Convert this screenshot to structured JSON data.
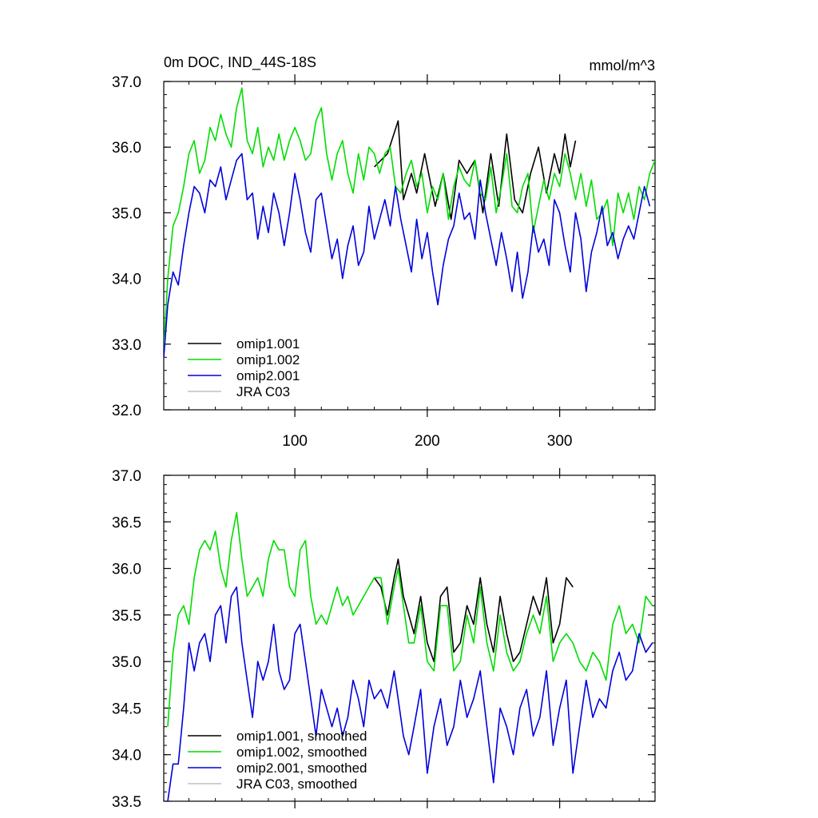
{
  "chart_data": [
    {
      "type": "line",
      "title": "0m DOC, IND_44S-18S",
      "units": "mmol/m^3",
      "xlim": [
        1,
        372
      ],
      "ylim": [
        32.0,
        37.0
      ],
      "xticks": [
        100,
        200,
        300
      ],
      "xtick_labels": [
        "100",
        "200",
        "300"
      ],
      "yticks": [
        32.0,
        33.0,
        34.0,
        35.0,
        36.0,
        37.0
      ],
      "ytick_labels": [
        "32.0",
        "33.0",
        "34.0",
        "35.0",
        "36.0",
        "37.0"
      ],
      "legend": [
        "omip1.001",
        "omip1.002",
        "omip2.001",
        "JRA C03"
      ],
      "legend_position": "bottom-left",
      "series": [
        {
          "name": "omip1.001",
          "color": "#000000",
          "x": [
            160,
            170,
            178,
            182,
            188,
            192,
            198,
            206,
            212,
            218,
            224,
            230,
            236,
            242,
            248,
            254,
            260,
            266,
            272,
            278,
            284,
            290,
            296,
            300,
            304,
            308,
            312
          ],
          "values": [
            35.7,
            35.9,
            36.4,
            35.2,
            35.6,
            35.3,
            35.9,
            35.1,
            35.6,
            34.9,
            35.8,
            35.6,
            35.8,
            35.0,
            35.9,
            35.1,
            36.2,
            35.2,
            35.0,
            35.6,
            36.0,
            35.3,
            35.9,
            35.6,
            36.2,
            35.7,
            36.1
          ]
        },
        {
          "name": "omip1.002",
          "color": "#00dd00",
          "x": [
            1,
            4,
            8,
            12,
            16,
            20,
            24,
            28,
            32,
            36,
            40,
            44,
            48,
            52,
            56,
            60,
            64,
            68,
            72,
            76,
            80,
            84,
            88,
            92,
            96,
            100,
            104,
            108,
            112,
            116,
            120,
            124,
            128,
            132,
            136,
            140,
            144,
            148,
            152,
            156,
            160,
            164,
            168,
            172,
            176,
            180,
            184,
            188,
            192,
            196,
            200,
            204,
            208,
            212,
            216,
            220,
            224,
            228,
            232,
            236,
            240,
            244,
            248,
            252,
            256,
            260,
            264,
            268,
            272,
            276,
            280,
            284,
            288,
            292,
            296,
            300,
            304,
            308,
            312,
            316,
            320,
            324,
            328,
            332,
            336,
            340,
            344,
            348,
            352,
            356,
            360,
            364,
            368,
            372
          ],
          "values": [
            32.9,
            34.0,
            34.8,
            35.0,
            35.4,
            35.9,
            36.1,
            35.6,
            35.8,
            36.3,
            36.1,
            36.5,
            36.2,
            36.0,
            36.6,
            36.9,
            36.1,
            35.9,
            36.3,
            35.7,
            36.0,
            35.8,
            36.2,
            35.8,
            36.1,
            36.3,
            36.1,
            35.8,
            35.9,
            36.4,
            36.6,
            35.9,
            35.5,
            35.9,
            36.1,
            35.6,
            35.3,
            35.9,
            35.5,
            36.0,
            35.9,
            35.6,
            35.9,
            36.0,
            35.4,
            35.3,
            35.6,
            35.8,
            35.4,
            35.6,
            35.0,
            35.4,
            35.2,
            35.6,
            34.9,
            35.4,
            35.7,
            35.5,
            35.4,
            35.8,
            35.3,
            35.2,
            35.7,
            35.0,
            35.4,
            35.9,
            35.1,
            35.0,
            35.4,
            35.6,
            34.7,
            35.1,
            35.5,
            35.2,
            35.6,
            35.4,
            35.9,
            35.6,
            35.2,
            35.6,
            35.1,
            35.5,
            34.9,
            35.0,
            35.2,
            34.5,
            35.3,
            35.0,
            35.3,
            34.9,
            35.4,
            35.2,
            35.6,
            35.8
          ]
        },
        {
          "name": "omip2.001",
          "color": "#0000dd",
          "x": [
            1,
            4,
            8,
            12,
            16,
            20,
            24,
            28,
            32,
            36,
            40,
            44,
            48,
            52,
            56,
            60,
            64,
            68,
            72,
            76,
            80,
            84,
            88,
            92,
            96,
            100,
            104,
            108,
            112,
            116,
            120,
            124,
            128,
            132,
            136,
            140,
            144,
            148,
            152,
            156,
            160,
            164,
            168,
            172,
            176,
            180,
            184,
            188,
            192,
            196,
            200,
            204,
            208,
            212,
            216,
            220,
            224,
            228,
            232,
            236,
            240,
            244,
            248,
            252,
            256,
            260,
            264,
            268,
            272,
            276,
            280,
            284,
            288,
            292,
            296,
            300,
            304,
            308,
            312,
            316,
            320,
            324,
            328,
            332,
            336,
            340,
            344,
            348,
            352,
            356,
            360,
            364,
            368
          ],
          "values": [
            32.8,
            33.6,
            34.1,
            33.9,
            34.5,
            35.0,
            35.4,
            35.3,
            35.0,
            35.5,
            35.4,
            35.7,
            35.2,
            35.5,
            35.8,
            35.9,
            35.2,
            35.3,
            34.6,
            35.1,
            34.7,
            35.3,
            35.0,
            34.5,
            35.0,
            35.6,
            35.2,
            34.7,
            34.4,
            35.2,
            35.3,
            34.8,
            34.3,
            34.6,
            34.0,
            34.5,
            34.8,
            34.2,
            34.4,
            35.1,
            34.6,
            34.9,
            35.2,
            34.8,
            35.4,
            34.9,
            34.5,
            34.1,
            34.9,
            34.3,
            34.7,
            34.1,
            33.6,
            34.2,
            34.6,
            34.8,
            35.3,
            34.9,
            35.0,
            34.6,
            35.5,
            35.0,
            34.6,
            34.2,
            34.7,
            34.3,
            33.8,
            34.4,
            33.7,
            34.1,
            34.8,
            34.4,
            34.6,
            34.2,
            35.2,
            35.0,
            34.5,
            34.1,
            35.0,
            34.6,
            33.8,
            34.4,
            34.7,
            35.1,
            34.5,
            34.7,
            34.3,
            34.6,
            34.8,
            34.6,
            35.0,
            35.4,
            35.1
          ]
        },
        {
          "name": "JRA C03",
          "color": "#c0c0c0",
          "x": [],
          "values": []
        }
      ]
    },
    {
      "type": "line",
      "title": "",
      "xlim": [
        1,
        372
      ],
      "ylim": [
        33.5,
        37.0
      ],
      "xticks": [
        100,
        200,
        300
      ],
      "yticks": [
        33.5,
        34.0,
        34.5,
        35.0,
        35.5,
        36.0,
        36.5,
        37.0
      ],
      "ytick_labels": [
        "33.5",
        "34.0",
        "34.5",
        "35.0",
        "35.5",
        "36.0",
        "36.5",
        "37.0"
      ],
      "legend": [
        "omip1.001, smoothed",
        "omip1.002, smoothed",
        "omip2.001, smoothed",
        "JRA C03, smoothed"
      ],
      "legend_position": "bottom-left",
      "series": [
        {
          "name": "omip1.001, smoothed",
          "color": "#000000",
          "x": [
            160,
            165,
            170,
            175,
            178,
            182,
            186,
            190,
            195,
            200,
            205,
            210,
            215,
            220,
            225,
            230,
            235,
            240,
            245,
            250,
            255,
            260,
            265,
            270,
            275,
            280,
            285,
            290,
            295,
            300,
            305,
            310
          ],
          "values": [
            35.9,
            35.8,
            35.5,
            35.9,
            36.1,
            35.7,
            35.5,
            35.3,
            35.7,
            35.2,
            35.0,
            35.7,
            35.8,
            35.1,
            35.2,
            35.6,
            35.4,
            35.9,
            35.4,
            35.1,
            35.7,
            35.3,
            35.0,
            35.1,
            35.4,
            35.7,
            35.5,
            35.9,
            35.2,
            35.4,
            35.9,
            35.8
          ]
        },
        {
          "name": "omip1.002, smoothed",
          "color": "#00dd00",
          "x": [
            4,
            8,
            12,
            16,
            20,
            24,
            28,
            32,
            36,
            40,
            44,
            48,
            52,
            56,
            60,
            64,
            68,
            72,
            76,
            80,
            84,
            88,
            92,
            96,
            100,
            104,
            108,
            112,
            116,
            120,
            124,
            128,
            132,
            136,
            140,
            144,
            148,
            152,
            156,
            160,
            165,
            170,
            175,
            178,
            182,
            186,
            190,
            195,
            200,
            205,
            210,
            215,
            220,
            225,
            230,
            235,
            240,
            245,
            250,
            255,
            260,
            265,
            270,
            275,
            280,
            285,
            290,
            295,
            300,
            305,
            310,
            315,
            320,
            325,
            330,
            335,
            340,
            345,
            350,
            355,
            360,
            365,
            370
          ],
          "values": [
            34.3,
            35.1,
            35.5,
            35.6,
            35.4,
            35.9,
            36.2,
            36.3,
            36.2,
            36.4,
            36.0,
            35.8,
            36.3,
            36.6,
            36.1,
            35.7,
            35.8,
            35.9,
            35.7,
            36.1,
            36.3,
            36.2,
            36.2,
            35.8,
            35.7,
            36.2,
            36.3,
            35.7,
            35.4,
            35.5,
            35.4,
            35.6,
            35.8,
            35.6,
            35.7,
            35.5,
            35.6,
            35.7,
            35.8,
            35.9,
            35.9,
            35.4,
            35.8,
            36.0,
            35.6,
            35.2,
            35.2,
            35.6,
            35.0,
            34.9,
            35.6,
            35.6,
            34.9,
            35.0,
            35.5,
            35.2,
            35.8,
            35.2,
            34.9,
            35.5,
            35.1,
            34.9,
            35.0,
            35.3,
            35.5,
            35.3,
            35.7,
            35.0,
            35.2,
            35.3,
            35.2,
            35.0,
            34.9,
            35.1,
            35.0,
            34.8,
            35.4,
            35.6,
            35.3,
            35.4,
            35.2,
            35.7,
            35.6
          ]
        },
        {
          "name": "omip2.001, smoothed",
          "color": "#0000dd",
          "x": [
            4,
            8,
            12,
            16,
            20,
            24,
            28,
            32,
            36,
            40,
            44,
            48,
            52,
            56,
            60,
            64,
            68,
            72,
            76,
            80,
            84,
            88,
            92,
            96,
            100,
            104,
            108,
            112,
            116,
            120,
            124,
            128,
            132,
            136,
            140,
            144,
            148,
            152,
            156,
            160,
            165,
            170,
            175,
            178,
            182,
            186,
            190,
            195,
            200,
            205,
            210,
            215,
            220,
            225,
            230,
            235,
            240,
            245,
            250,
            255,
            260,
            265,
            270,
            275,
            280,
            285,
            290,
            295,
            300,
            305,
            310,
            315,
            320,
            325,
            330,
            335,
            340,
            345,
            350,
            355,
            360,
            365,
            370
          ],
          "values": [
            33.5,
            33.9,
            33.9,
            34.5,
            35.2,
            34.9,
            35.2,
            35.3,
            35.0,
            35.5,
            35.6,
            35.2,
            35.7,
            35.8,
            35.2,
            34.8,
            34.4,
            35.0,
            34.8,
            35.0,
            35.4,
            34.9,
            34.7,
            34.8,
            35.3,
            35.4,
            35.0,
            34.6,
            34.2,
            34.7,
            34.5,
            34.3,
            34.5,
            34.2,
            34.4,
            34.8,
            34.6,
            34.3,
            34.8,
            34.6,
            34.7,
            34.5,
            34.9,
            34.6,
            34.2,
            34.0,
            34.3,
            34.7,
            33.8,
            34.3,
            34.6,
            34.1,
            34.3,
            34.8,
            34.4,
            34.6,
            34.9,
            34.3,
            33.7,
            34.5,
            34.3,
            34.0,
            34.5,
            34.7,
            34.2,
            34.4,
            34.9,
            34.1,
            34.5,
            34.8,
            33.8,
            34.3,
            34.8,
            34.4,
            34.6,
            34.5,
            34.9,
            35.1,
            34.8,
            34.9,
            35.3,
            35.1,
            35.2
          ]
        },
        {
          "name": "JRA C03, smoothed",
          "color": "#c0c0c0",
          "x": [],
          "values": []
        }
      ]
    }
  ]
}
